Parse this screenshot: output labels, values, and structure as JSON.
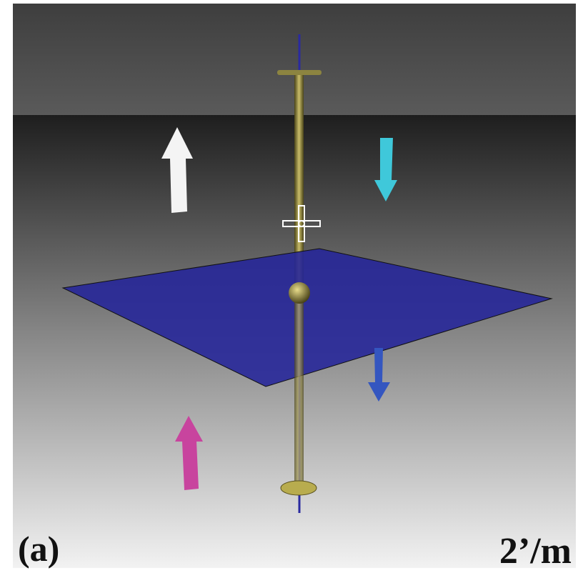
{
  "panel_label": "(a)",
  "scale_label": "2’/m"
}
